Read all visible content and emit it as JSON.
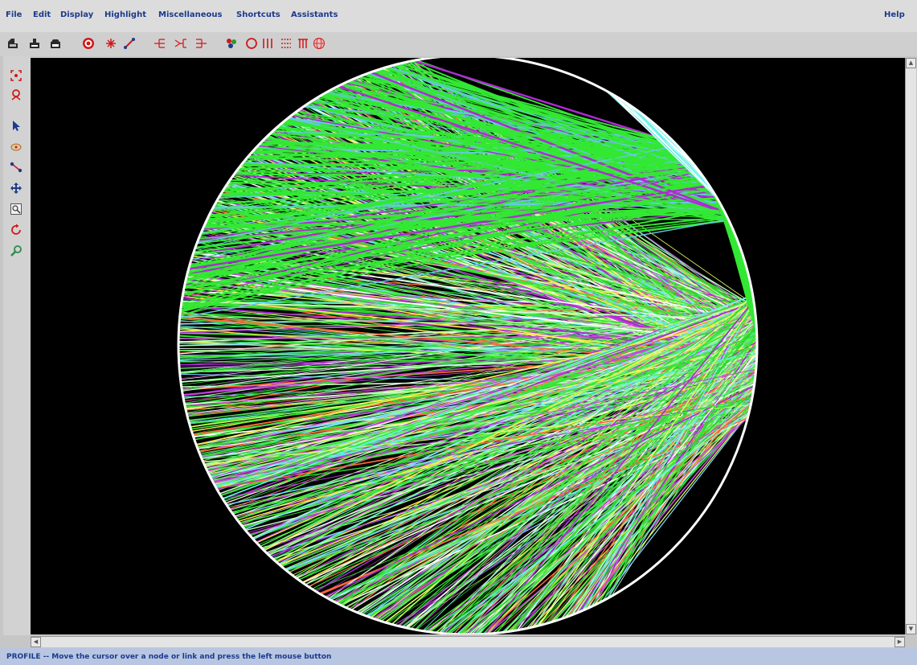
{
  "menubar": {
    "items": [
      "File",
      "Edit",
      "Display",
      "Highlight",
      "Miscellaneous",
      "Shortcuts",
      "Assistants"
    ],
    "help": "Help"
  },
  "status": {
    "text": "PROFILE -- Move the cursor over a node or link and press the left mouse button"
  },
  "colors": {
    "menu_text": "#1d3a8c",
    "canvas_bg": "#000000",
    "status_bg": "#b8c6e2",
    "link_green": "#33e833",
    "link_purple": "#b02ad4",
    "circle_outline": "#ffffff"
  },
  "toolbar_icons": [
    "open-file-icon",
    "save-file-icon",
    "print-icon",
    "target-icon",
    "star-icon",
    "link-draw-icon",
    "tree-right-icon",
    "tree-merge-icon",
    "tree-left-icon",
    "cluster-icon",
    "circle-layout-icon",
    "vertical-lines-icon",
    "grid-dots-icon",
    "hierarchy-icon",
    "globe-icon"
  ],
  "side_tools": [
    "zoom-fit-icon",
    "pin-icon",
    "select-arrow-icon",
    "hand-move-icon",
    "connect-icon",
    "plus-move-icon",
    "zoom-box-icon",
    "rotate-icon",
    "magnify-icon"
  ]
}
